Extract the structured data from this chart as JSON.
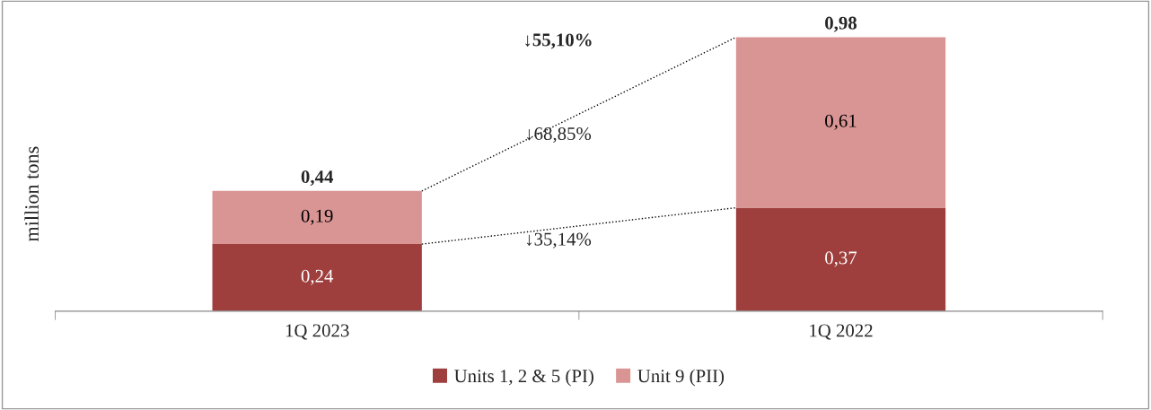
{
  "chart_data": {
    "type": "bar",
    "stacked": true,
    "ylabel": "million tons",
    "categories": [
      "1Q 2023",
      "1Q 2022"
    ],
    "series": [
      {
        "name": "Units 1, 2 & 5 (PI)",
        "color": "#9e3f3d",
        "values": [
          0.24,
          0.37
        ],
        "value_labels": [
          "0,24",
          "0,37"
        ]
      },
      {
        "name": "Unit 9 (PII)",
        "color": "#d99594",
        "values": [
          0.19,
          0.61
        ],
        "value_labels": [
          "0,19",
          "0,61"
        ]
      }
    ],
    "totals": [
      "0,44",
      "0,98"
    ],
    "annotations": [
      "↓55,10%",
      "↓68,85%",
      "↓35,14%"
    ],
    "legend": "bottom",
    "grid": false,
    "tick_labels": "x"
  }
}
